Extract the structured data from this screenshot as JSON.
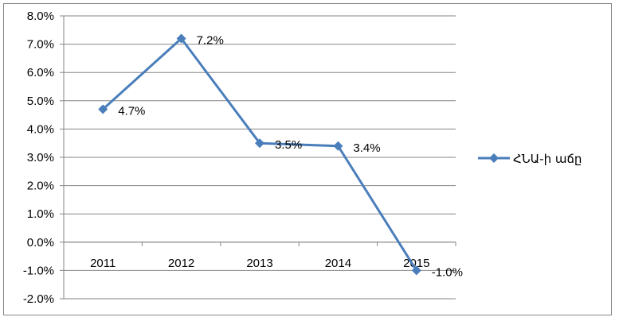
{
  "chart_data": {
    "type": "line",
    "categories": [
      "2011",
      "2012",
      "2013",
      "2014",
      "2015"
    ],
    "series": [
      {
        "name": "ՀՆԱ-ի աճը",
        "values": [
          4.7,
          7.2,
          3.5,
          3.4,
          -1.0
        ],
        "data_labels": [
          "4.7%",
          "7.2%",
          "3.5%",
          "3.4%",
          "-1.0%"
        ],
        "color": "#4a7ebb"
      }
    ],
    "yticks": [
      "8.0%",
      "7.0%",
      "6.0%",
      "5.0%",
      "4.0%",
      "3.0%",
      "2.0%",
      "1.0%",
      "0.0%",
      "-1.0%",
      "-2.0%"
    ],
    "ylim": [
      -2.0,
      8.0
    ],
    "grid": true,
    "legend_position": "right",
    "gridline_color": "#868686",
    "axis_color": "#868686"
  }
}
